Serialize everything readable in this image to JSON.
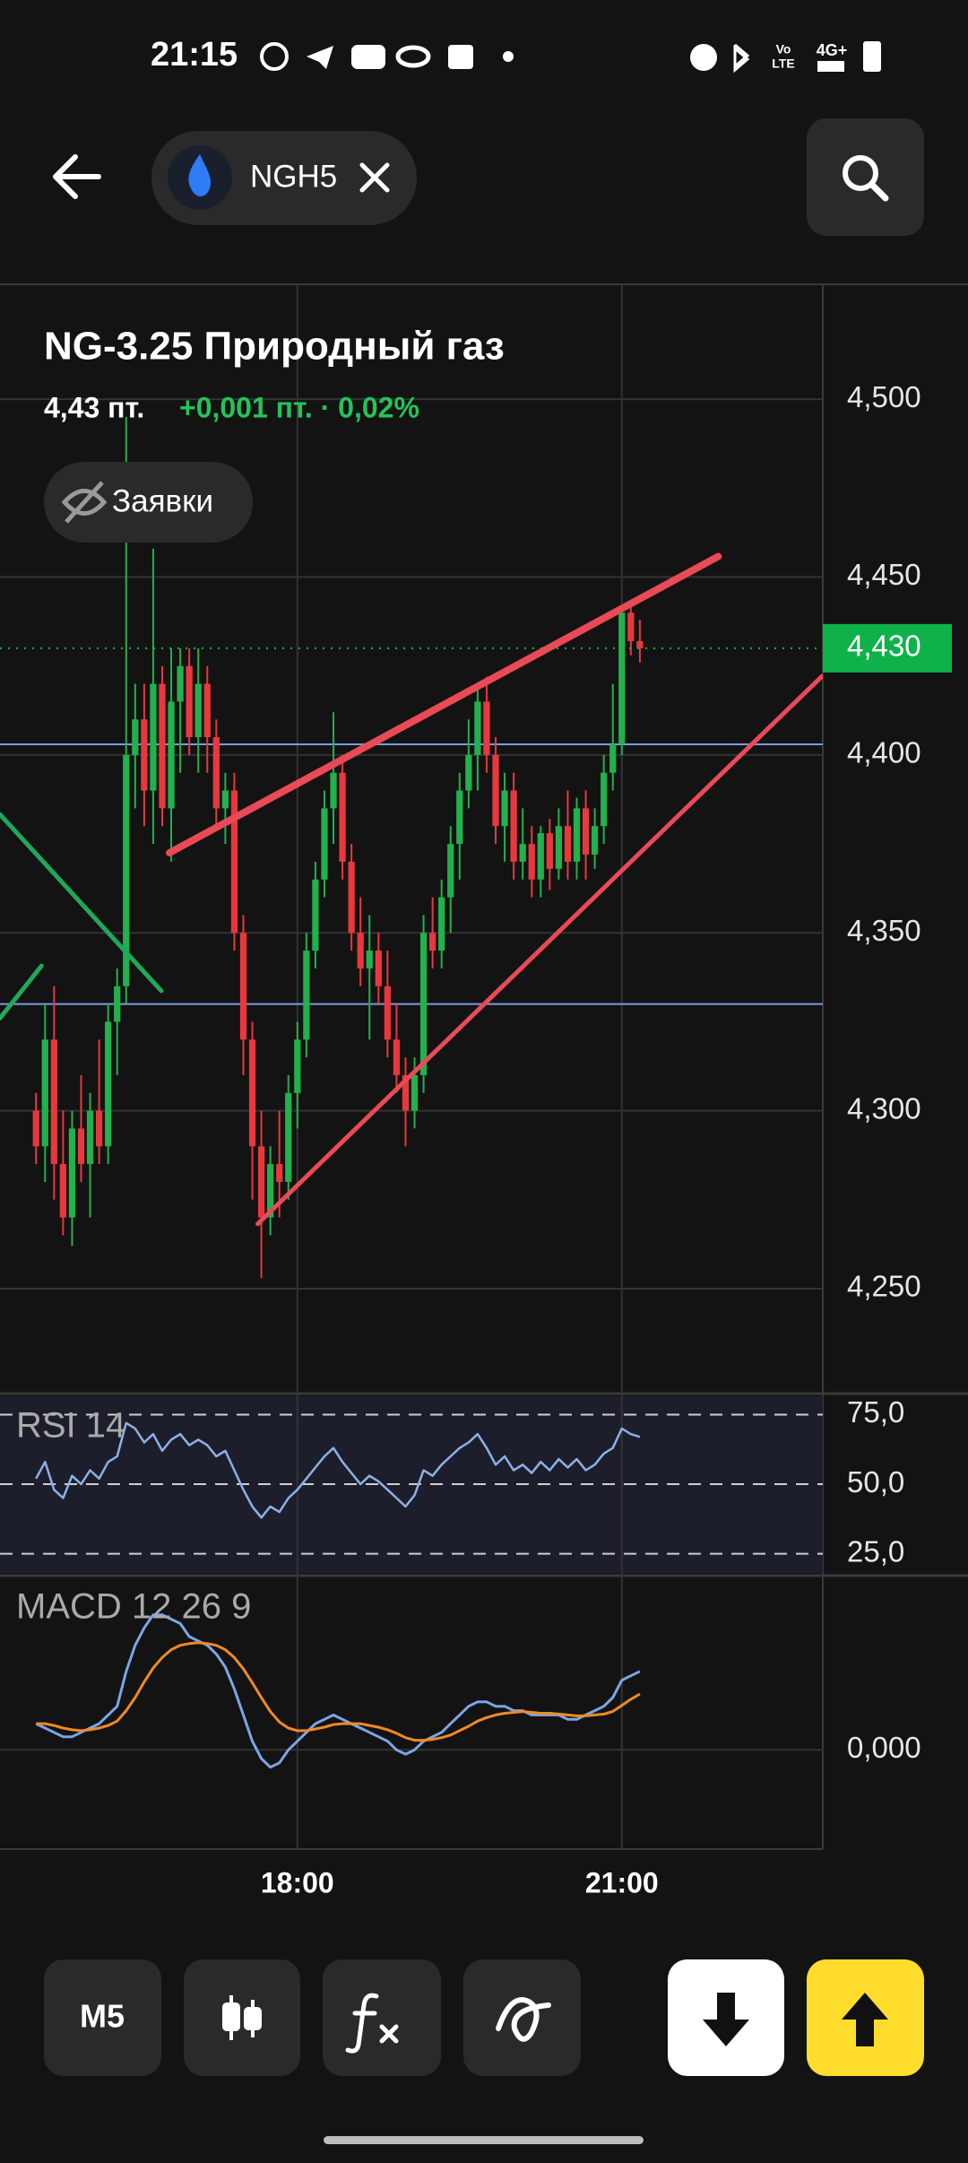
{
  "status_bar": {
    "time": "21:15",
    "volte_top": "Vo",
    "volte_bottom": "LTE",
    "network": "4G+"
  },
  "header": {
    "ticker": "NGH5"
  },
  "instrument": {
    "title": "NG-3.25 Природный газ",
    "price": "4,43 пт.",
    "change": "+0,001 пт. · 0,02%"
  },
  "orders_button": "Заявки",
  "chart_data": {
    "type": "candlestick",
    "candles": [
      [
        4.3,
        4.305,
        4.285,
        4.29
      ],
      [
        4.29,
        4.33,
        4.28,
        4.32
      ],
      [
        4.32,
        4.335,
        4.275,
        4.285
      ],
      [
        4.285,
        4.3,
        4.265,
        4.27
      ],
      [
        4.27,
        4.3,
        4.262,
        4.295
      ],
      [
        4.295,
        4.31,
        4.28,
        4.285
      ],
      [
        4.285,
        4.305,
        4.27,
        4.3
      ],
      [
        4.3,
        4.32,
        4.285,
        4.29
      ],
      [
        4.29,
        4.33,
        4.285,
        4.325
      ],
      [
        4.325,
        4.34,
        4.31,
        4.335
      ],
      [
        4.335,
        4.495,
        4.33,
        4.4
      ],
      [
        4.4,
        4.42,
        4.385,
        4.41
      ],
      [
        4.41,
        4.42,
        4.38,
        4.39
      ],
      [
        4.39,
        4.458,
        4.375,
        4.42
      ],
      [
        4.42,
        4.425,
        4.38,
        4.385
      ],
      [
        4.385,
        4.43,
        4.37,
        4.415
      ],
      [
        4.415,
        4.43,
        4.395,
        4.425
      ],
      [
        4.425,
        4.43,
        4.4,
        4.405
      ],
      [
        4.405,
        4.43,
        4.395,
        4.42
      ],
      [
        4.42,
        4.425,
        4.395,
        4.405
      ],
      [
        4.405,
        4.41,
        4.38,
        4.385
      ],
      [
        4.385,
        4.395,
        4.375,
        4.39
      ],
      [
        4.39,
        4.395,
        4.345,
        4.35
      ],
      [
        4.35,
        4.355,
        4.31,
        4.32
      ],
      [
        4.32,
        4.325,
        4.275,
        4.29
      ],
      [
        4.29,
        4.3,
        4.253,
        4.27
      ],
      [
        4.27,
        4.29,
        4.265,
        4.285
      ],
      [
        4.285,
        4.3,
        4.27,
        4.28
      ],
      [
        4.28,
        4.31,
        4.275,
        4.305
      ],
      [
        4.305,
        4.325,
        4.295,
        4.32
      ],
      [
        4.32,
        4.35,
        4.315,
        4.345
      ],
      [
        4.345,
        4.37,
        4.34,
        4.365
      ],
      [
        4.365,
        4.39,
        4.36,
        4.385
      ],
      [
        4.385,
        4.412,
        4.375,
        4.395
      ],
      [
        4.395,
        4.4,
        4.365,
        4.37
      ],
      [
        4.37,
        4.375,
        4.345,
        4.35
      ],
      [
        4.35,
        4.36,
        4.335,
        4.34
      ],
      [
        4.34,
        4.355,
        4.32,
        4.345
      ],
      [
        4.345,
        4.35,
        4.33,
        4.335
      ],
      [
        4.335,
        4.345,
        4.315,
        4.32
      ],
      [
        4.32,
        4.33,
        4.305,
        4.31
      ],
      [
        4.31,
        4.315,
        4.29,
        4.3
      ],
      [
        4.3,
        4.315,
        4.295,
        4.31
      ],
      [
        4.31,
        4.355,
        4.305,
        4.35
      ],
      [
        4.35,
        4.36,
        4.34,
        4.345
      ],
      [
        4.345,
        4.365,
        4.34,
        4.36
      ],
      [
        4.36,
        4.38,
        4.35,
        4.375
      ],
      [
        4.375,
        4.395,
        4.365,
        4.39
      ],
      [
        4.39,
        4.41,
        4.385,
        4.4
      ],
      [
        4.4,
        4.42,
        4.39,
        4.415
      ],
      [
        4.415,
        4.422,
        4.395,
        4.4
      ],
      [
        4.4,
        4.405,
        4.375,
        4.38
      ],
      [
        4.38,
        4.395,
        4.37,
        4.39
      ],
      [
        4.39,
        4.395,
        4.365,
        4.37
      ],
      [
        4.37,
        4.385,
        4.365,
        4.375
      ],
      [
        4.375,
        4.38,
        4.36,
        4.365
      ],
      [
        4.365,
        4.38,
        4.36,
        4.378
      ],
      [
        4.378,
        4.382,
        4.362,
        4.368
      ],
      [
        4.368,
        4.385,
        4.365,
        4.38
      ],
      [
        4.38,
        4.39,
        4.365,
        4.37
      ],
      [
        4.37,
        4.388,
        4.365,
        4.385
      ],
      [
        4.385,
        4.39,
        4.365,
        4.372
      ],
      [
        4.372,
        4.385,
        4.368,
        4.38
      ],
      [
        4.38,
        4.4,
        4.375,
        4.395
      ],
      [
        4.395,
        4.42,
        4.39,
        4.403
      ],
      [
        4.403,
        4.442,
        4.4,
        4.44
      ],
      [
        4.44,
        4.443,
        4.428,
        4.432
      ],
      [
        4.432,
        4.438,
        4.426,
        4.43
      ]
    ],
    "up_color": "#22b14c",
    "down_color": "#e8383d",
    "xlim": [
      -4,
      87.3
    ],
    "xticks": [
      {
        "value": 29,
        "label": "18:00"
      },
      {
        "value": 65,
        "label": "21:00"
      }
    ],
    "ylim": [
      4.2205,
      4.5323
    ],
    "yticks": [
      {
        "value": 4.5,
        "label": "4,500"
      },
      {
        "value": 4.45,
        "label": "4,450"
      },
      {
        "value": 4.4,
        "label": "4,400"
      },
      {
        "value": 4.35,
        "label": "4,350"
      },
      {
        "value": 4.3,
        "label": "4,300"
      },
      {
        "value": 4.25,
        "label": "4,250"
      }
    ],
    "grid": true,
    "last_price": {
      "value": 4.43,
      "label": "4,430"
    },
    "levels": [
      4.403,
      4.33
    ],
    "level_color": "#7a9ce0",
    "trendlines": [
      {
        "color": "#e94a55",
        "points": [
          [
            14.8,
            4.3725
          ],
          [
            75.7,
            4.4558
          ]
        ]
      },
      {
        "color": "#e94a55",
        "points": [
          [
            24.6,
            4.2682
          ],
          [
            87.2,
            4.4221
          ]
        ]
      },
      {
        "color": "#1fa85a",
        "points": [
          [
            -4,
            4.3833
          ],
          [
            13.9,
            4.3337
          ]
        ]
      },
      {
        "color": "#1fa85a",
        "points": [
          [
            -4,
            4.326
          ],
          [
            0.6,
            4.3407
          ]
        ]
      }
    ],
    "rsi": {
      "label": "RSI 14",
      "color": "#8fb0e8",
      "ylim": [
        18.1,
        81.6
      ],
      "yticks": [
        {
          "value": 75,
          "label": "75,0"
        },
        {
          "value": 50,
          "label": "50,0"
        },
        {
          "value": 25,
          "label": "25,0"
        }
      ],
      "values": [
        52,
        58,
        48,
        45,
        53,
        50,
        55,
        52,
        58,
        60,
        72,
        70,
        65,
        68,
        62,
        66,
        68,
        64,
        66,
        64,
        60,
        62,
        55,
        48,
        42,
        38,
        42,
        40,
        45,
        48,
        52,
        56,
        60,
        63,
        58,
        54,
        50,
        53,
        51,
        48,
        45,
        42,
        46,
        55,
        53,
        57,
        60,
        63,
        65,
        68,
        63,
        57,
        60,
        55,
        57,
        54,
        58,
        55,
        59,
        56,
        59,
        55,
        57,
        61,
        63,
        70,
        68,
        67
      ]
    },
    "macd": {
      "label": "MACD 12 26 9",
      "ylim": [
        -0.0114,
        0.02
      ],
      "yticks": [
        {
          "value": 0,
          "label": "0,000"
        }
      ],
      "series": [
        {
          "name": "MACD",
          "color": "#7aa6e8",
          "values": [
            0.003,
            0.0025,
            0.002,
            0.0015,
            0.0015,
            0.002,
            0.0025,
            0.003,
            0.004,
            0.005,
            0.009,
            0.012,
            0.014,
            0.0155,
            0.0155,
            0.015,
            0.0145,
            0.013,
            0.0125,
            0.012,
            0.011,
            0.0095,
            0.007,
            0.004,
            0.001,
            -0.001,
            -0.002,
            -0.0015,
            0.0,
            0.001,
            0.002,
            0.003,
            0.0035,
            0.004,
            0.0035,
            0.003,
            0.0025,
            0.002,
            0.0015,
            0.001,
            0.0,
            -0.0005,
            0.0,
            0.001,
            0.0015,
            0.002,
            0.003,
            0.004,
            0.005,
            0.0055,
            0.0055,
            0.005,
            0.005,
            0.0045,
            0.0045,
            0.004,
            0.004,
            0.004,
            0.004,
            0.0035,
            0.0035,
            0.004,
            0.0045,
            0.005,
            0.006,
            0.008,
            0.0085,
            0.009
          ]
        },
        {
          "name": "Signal",
          "color": "#f08a24",
          "values": [
            0.003,
            0.003,
            0.0028,
            0.0025,
            0.0023,
            0.0022,
            0.0023,
            0.0025,
            0.0028,
            0.0033,
            0.0045,
            0.006,
            0.0078,
            0.0094,
            0.0106,
            0.0115,
            0.012,
            0.0122,
            0.0123,
            0.0122,
            0.012,
            0.0115,
            0.0106,
            0.0093,
            0.0077,
            0.006,
            0.0044,
            0.0032,
            0.0025,
            0.0022,
            0.0022,
            0.0024,
            0.0026,
            0.0029,
            0.003,
            0.003,
            0.003,
            0.0028,
            0.0026,
            0.0023,
            0.0019,
            0.0014,
            0.0011,
            0.0011,
            0.0012,
            0.0014,
            0.0017,
            0.0022,
            0.0027,
            0.0033,
            0.0037,
            0.004,
            0.0042,
            0.0043,
            0.0044,
            0.0043,
            0.0042,
            0.0042,
            0.0041,
            0.004,
            0.0039,
            0.0039,
            0.004,
            0.0041,
            0.0044,
            0.0051,
            0.0058,
            0.0064
          ]
        }
      ]
    }
  },
  "bottom_bar": {
    "interval": "M5"
  }
}
